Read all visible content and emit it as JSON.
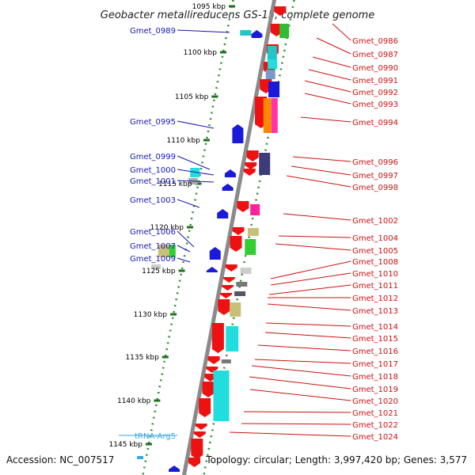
{
  "title": "Geobacter metallireducens GS-15, complete genome",
  "footer": {
    "accession": "Accession: NC_007517",
    "topology": "Topology: circular; Length: 3,997,420 bp; Genes: 3,577"
  },
  "colors": {
    "backbone": "#8a8a8a",
    "dotted_track": "#2e8b2e",
    "tick_mark": "#1f6d1f",
    "left_label": "#1515b5",
    "right_label": "#cc1111",
    "rna_label": "#33aadd",
    "forward_arrow": "#ee1111",
    "reverse_arrow": "#1a1ad8"
  },
  "ticks": [
    "1095 kbp",
    "1100 kbp",
    "1105 kbp",
    "1110 kbp",
    "1115 kbp",
    "1120 kbp",
    "1125 kbp",
    "1130 kbp",
    "1135 kbp",
    "1140 kbp",
    "1145 kbp"
  ],
  "left_labels": [
    {
      "text": "Gmet_0989"
    },
    {
      "text": "Gmet_0995"
    },
    {
      "text": "Gmet_0999"
    },
    {
      "text": "Gmet_1000"
    },
    {
      "text": "Gmet_1001"
    },
    {
      "text": "Gmet_1003"
    },
    {
      "text": "Gmet_1006"
    },
    {
      "text": "Gmet_1007"
    },
    {
      "text": "Gmet_1009"
    },
    {
      "text": "tRNA-Arg5"
    }
  ],
  "right_labels": [
    {
      "text": "Gmet_0986"
    },
    {
      "text": "Gmet_0987"
    },
    {
      "text": "Gmet_0990"
    },
    {
      "text": "Gmet_0991"
    },
    {
      "text": "Gmet_0992"
    },
    {
      "text": "Gmet_0993"
    },
    {
      "text": "Gmet_0994"
    },
    {
      "text": "Gmet_0996"
    },
    {
      "text": "Gmet_0997"
    },
    {
      "text": "Gmet_0998"
    },
    {
      "text": "Gmet_1002"
    },
    {
      "text": "Gmet_1004"
    },
    {
      "text": "Gmet_1005"
    },
    {
      "text": "Gmet_1008"
    },
    {
      "text": "Gmet_1010"
    },
    {
      "text": "Gmet_1011"
    },
    {
      "text": "Gmet_1012"
    },
    {
      "text": "Gmet_1013"
    },
    {
      "text": "Gmet_1014"
    },
    {
      "text": "Gmet_1015"
    },
    {
      "text": "Gmet_1016"
    },
    {
      "text": "Gmet_1017"
    },
    {
      "text": "Gmet_1018"
    },
    {
      "text": "Gmet_1019"
    },
    {
      "text": "Gmet_1020"
    },
    {
      "text": "Gmet_1021"
    },
    {
      "text": "Gmet_1022"
    },
    {
      "text": "Gmet_1024"
    }
  ]
}
